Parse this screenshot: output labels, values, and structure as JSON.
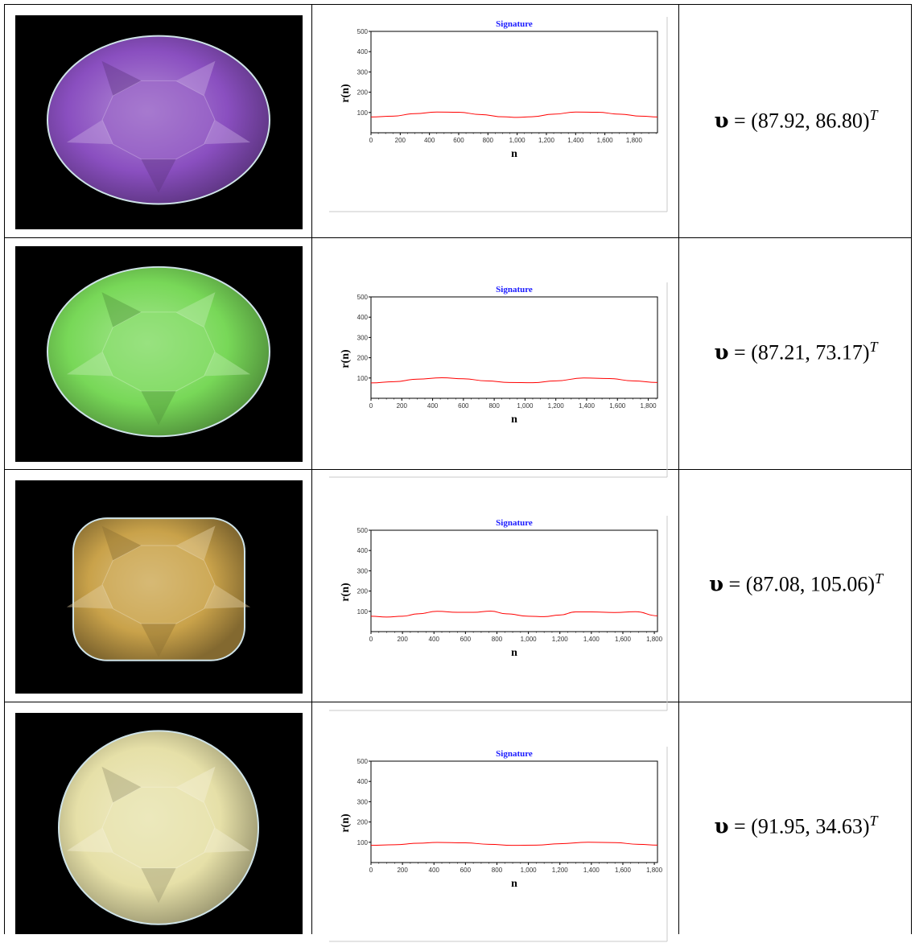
{
  "rows": [
    {
      "gem": {
        "name": "purple-oval-gemstone",
        "color": "#8a4fc0",
        "shape": "oval"
      },
      "chart_data": {
        "type": "line",
        "title": "Signature",
        "xlabel": "n",
        "ylabel": "r(n)",
        "xlim": [
          0,
          1960
        ],
        "ylim": [
          0,
          500
        ],
        "xticks": [
          0,
          200,
          400,
          600,
          800,
          1000,
          1200,
          1400,
          1600,
          1800
        ],
        "xtick_labels": [
          "0",
          "200",
          "400",
          "600",
          "800",
          "1,000",
          "1,200",
          "1,400",
          "1,600",
          "1,800"
        ],
        "yticks": [
          100,
          200,
          300,
          400,
          500
        ],
        "ytick_labels": [
          "100",
          "200",
          "300",
          "400",
          "500"
        ],
        "grid": false,
        "series": [
          {
            "color": "#ff0000",
            "x": [
              0,
              150,
              300,
              450,
              600,
              750,
              900,
              1000,
              1100,
              1250,
              1400,
              1550,
              1700,
              1850,
              1960
            ],
            "y": [
              78,
              82,
              94,
              102,
              101,
              90,
              79,
              76,
              79,
              92,
              102,
              101,
              92,
              82,
              78
            ]
          }
        ]
      },
      "formula": {
        "symbol": "υ",
        "eq": " = ",
        "value": "(87.92,  86.80)",
        "sup": "T"
      }
    },
    {
      "gem": {
        "name": "green-oval-gemstone",
        "color": "#78d858",
        "shape": "oval"
      },
      "chart_data": {
        "type": "line",
        "title": "Signature",
        "xlabel": "n",
        "ylabel": "r(n)",
        "xlim": [
          0,
          1860
        ],
        "ylim": [
          0,
          500
        ],
        "xticks": [
          0,
          200,
          400,
          600,
          800,
          1000,
          1200,
          1400,
          1600,
          1800
        ],
        "xtick_labels": [
          "0",
          "200",
          "400",
          "600",
          "800",
          "1,000",
          "1,200",
          "1,400",
          "1,600",
          "1,800"
        ],
        "yticks": [
          100,
          200,
          300,
          400,
          500
        ],
        "ytick_labels": [
          "100",
          "200",
          "300",
          "400",
          "500"
        ],
        "grid": false,
        "series": [
          {
            "color": "#ff0000",
            "x": [
              0,
              150,
              300,
              460,
              600,
              750,
              900,
              1050,
              1200,
              1380,
              1550,
              1700,
              1860
            ],
            "y": [
              76,
              82,
              94,
              101,
              96,
              86,
              78,
              77,
              86,
              100,
              97,
              86,
              78
            ]
          }
        ]
      },
      "formula": {
        "symbol": "υ",
        "eq": " = ",
        "value": "(87.21,  73.17)",
        "sup": "T"
      }
    },
    {
      "gem": {
        "name": "amber-cushion-gemstone",
        "color": "#c9a24a",
        "shape": "cushion"
      },
      "chart_data": {
        "type": "line",
        "title": "Signature",
        "xlabel": "n",
        "ylabel": "r(n)",
        "xlim": [
          0,
          1820
        ],
        "ylim": [
          0,
          500
        ],
        "xticks": [
          0,
          200,
          400,
          600,
          800,
          1000,
          1200,
          1400,
          1600,
          1800
        ],
        "xtick_labels": [
          "0",
          "200",
          "400",
          "600",
          "800",
          "1,000",
          "1,200",
          "1,400",
          "1,600",
          "1,800"
        ],
        "yticks": [
          100,
          200,
          300,
          400,
          500
        ],
        "ytick_labels": [
          "100",
          "200",
          "300",
          "400",
          "500"
        ],
        "grid": false,
        "series": [
          {
            "color": "#ff0000",
            "x": [
              0,
              100,
              200,
              300,
              420,
              550,
              650,
              760,
              860,
              1000,
              1100,
              1200,
              1300,
              1400,
              1550,
              1680,
              1820
            ],
            "y": [
              76,
              72,
              76,
              88,
              100,
              95,
              95,
              101,
              88,
              76,
              74,
              82,
              97,
              97,
              94,
              98,
              78
            ]
          }
        ]
      },
      "formula": {
        "symbol": "υ",
        "eq": " = ",
        "value": "(87.08,  105.06)",
        "sup": "T"
      }
    },
    {
      "gem": {
        "name": "pale-yellow-oval-gemstone",
        "color": "#e6e0a8",
        "shape": "round-oval"
      },
      "chart_data": {
        "type": "line",
        "title": "Signature",
        "xlabel": "n",
        "ylabel": "r(n)",
        "xlim": [
          0,
          1820
        ],
        "ylim": [
          0,
          500
        ],
        "xticks": [
          0,
          200,
          400,
          600,
          800,
          1000,
          1200,
          1400,
          1600,
          1800
        ],
        "xtick_labels": [
          "0",
          "200",
          "400",
          "600",
          "800",
          "1,000",
          "1,200",
          "1,400",
          "1,600",
          "1,800"
        ],
        "yticks": [
          100,
          200,
          300,
          400,
          500
        ],
        "ytick_labels": [
          "100",
          "200",
          "300",
          "400",
          "500"
        ],
        "grid": false,
        "series": [
          {
            "color": "#ff0000",
            "x": [
              0,
              150,
              300,
              420,
              600,
              750,
              900,
              1050,
              1200,
              1380,
              1550,
              1700,
              1820
            ],
            "y": [
              85,
              88,
              95,
              99,
              97,
              90,
              85,
              86,
              93,
              100,
              98,
              90,
              86
            ]
          }
        ]
      },
      "formula": {
        "symbol": "υ",
        "eq": " = ",
        "value": "(91.95,  34.63)",
        "sup": "T"
      }
    }
  ]
}
